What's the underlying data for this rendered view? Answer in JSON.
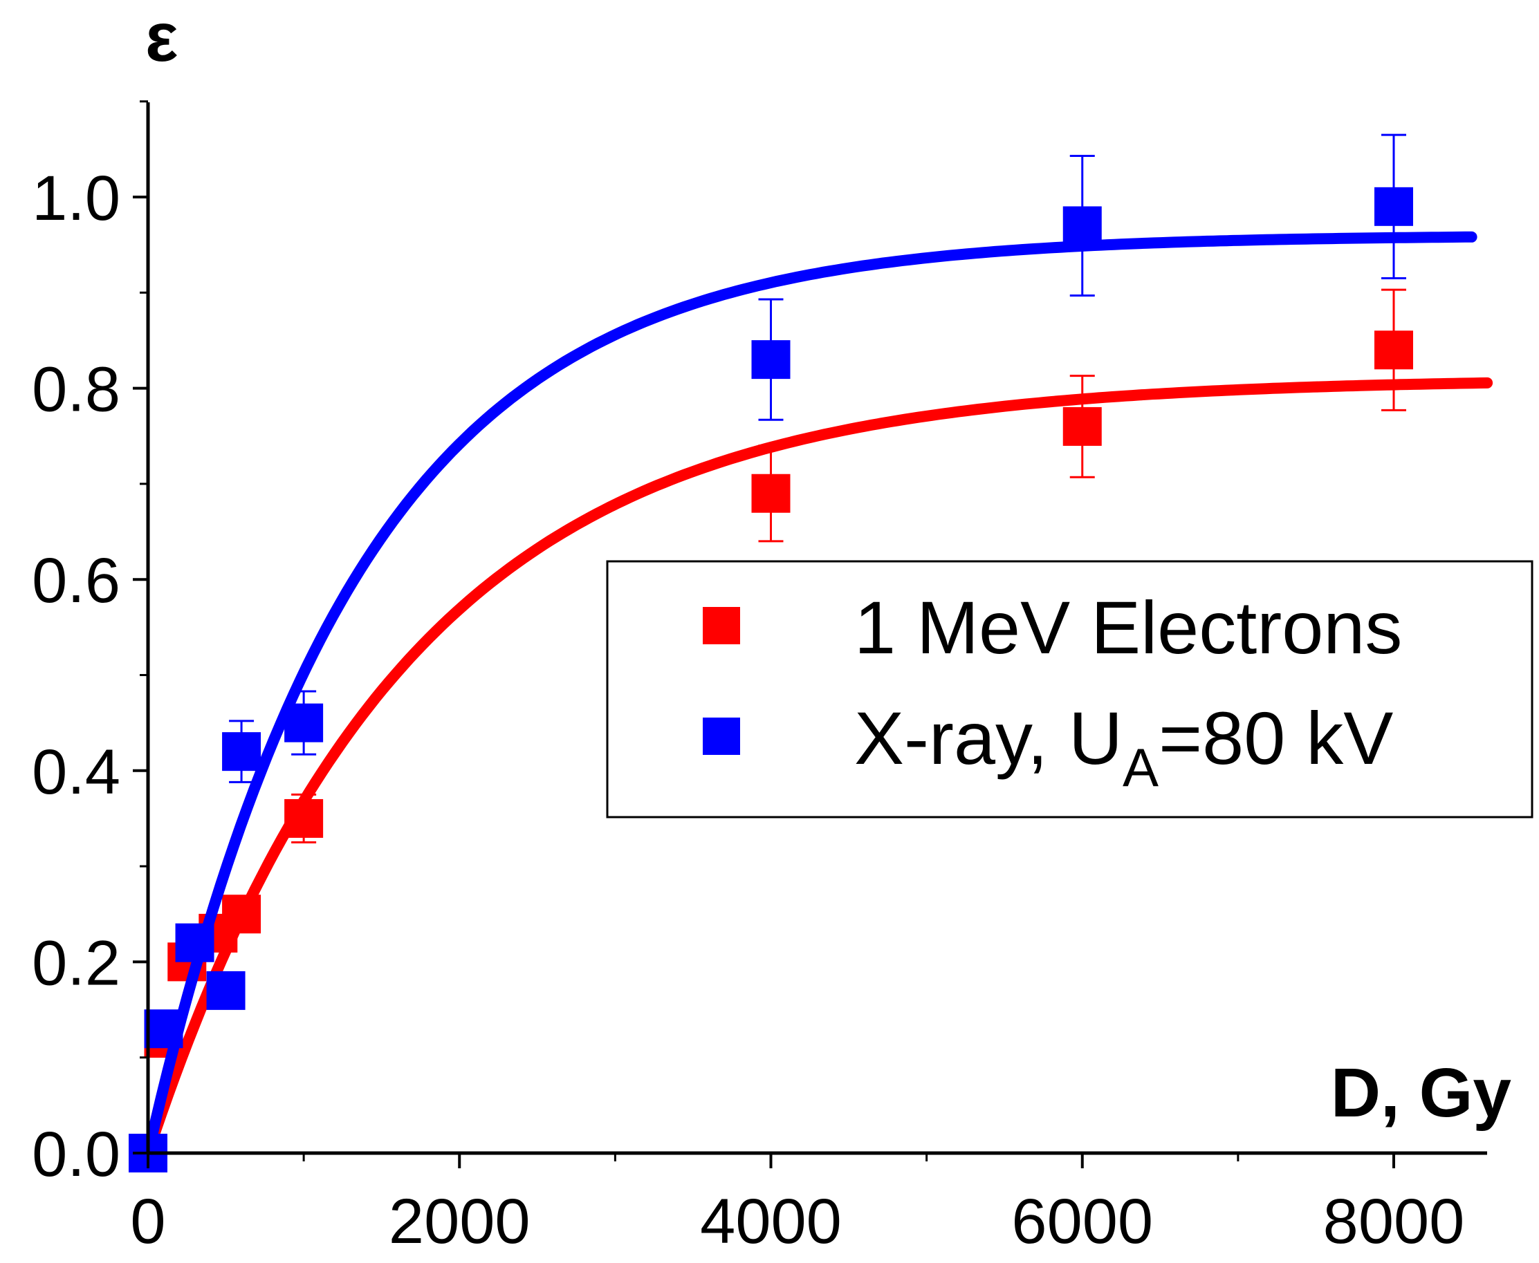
{
  "chart_data": {
    "type": "scatter",
    "title": "",
    "xlabel": "D, Gy",
    "ylabel": "ε",
    "xlim": [
      0,
      8600
    ],
    "ylim": [
      0,
      1.1
    ],
    "grid": false,
    "legend_position": "center-right",
    "x_ticks": [
      {
        "value": 0,
        "label": "0"
      },
      {
        "value": 2000,
        "label": "2000"
      },
      {
        "value": 4000,
        "label": "4000"
      },
      {
        "value": 6000,
        "label": "6000"
      },
      {
        "value": 8000,
        "label": "8000"
      }
    ],
    "y_ticks": [
      {
        "value": 0.0,
        "label": "0.0"
      },
      {
        "value": 0.2,
        "label": "0.2"
      },
      {
        "value": 0.4,
        "label": "0.4"
      },
      {
        "value": 0.6,
        "label": "0.6"
      },
      {
        "value": 0.8,
        "label": "0.8"
      },
      {
        "value": 1.0,
        "label": "1.0"
      }
    ],
    "series": [
      {
        "name": "1 MeV Electrons",
        "color": "#ff0000",
        "points": [
          {
            "x": 0,
            "y": 0.0,
            "err": 0.0
          },
          {
            "x": 100,
            "y": 0.12,
            "err": 0.0
          },
          {
            "x": 250,
            "y": 0.2,
            "err": 0.0
          },
          {
            "x": 450,
            "y": 0.23,
            "err": 0.0
          },
          {
            "x": 600,
            "y": 0.25,
            "err": 0.0
          },
          {
            "x": 1000,
            "y": 0.35,
            "err": 0.025
          },
          {
            "x": 4000,
            "y": 0.69,
            "err": 0.05
          },
          {
            "x": 6000,
            "y": 0.76,
            "err": 0.053
          },
          {
            "x": 8000,
            "y": 0.84,
            "err": 0.063
          }
        ],
        "fit": {
          "model": "A*(1-exp(-x/t))",
          "A": 0.81,
          "t": 1650,
          "x_range": [
            0,
            8600
          ]
        }
      },
      {
        "name": "X-ray, U",
        "name_subscript": "A",
        "name_suffix": "=80 kV",
        "color": "#0000ff",
        "points": [
          {
            "x": 0,
            "y": 0.0,
            "err": 0.0
          },
          {
            "x": 100,
            "y": 0.13,
            "err": 0.0
          },
          {
            "x": 300,
            "y": 0.22,
            "err": 0.0
          },
          {
            "x": 500,
            "y": 0.17,
            "err": 0.0
          },
          {
            "x": 600,
            "y": 0.42,
            "err": 0.032
          },
          {
            "x": 1000,
            "y": 0.45,
            "err": 0.033
          },
          {
            "x": 4000,
            "y": 0.83,
            "err": 0.063
          },
          {
            "x": 6000,
            "y": 0.97,
            "err": 0.073
          },
          {
            "x": 8000,
            "y": 0.99,
            "err": 0.075
          }
        ],
        "fit": {
          "model": "A*(1-exp(-x/t))",
          "A": 0.96,
          "t": 1350,
          "x_range": [
            0,
            8500
          ]
        }
      }
    ]
  }
}
